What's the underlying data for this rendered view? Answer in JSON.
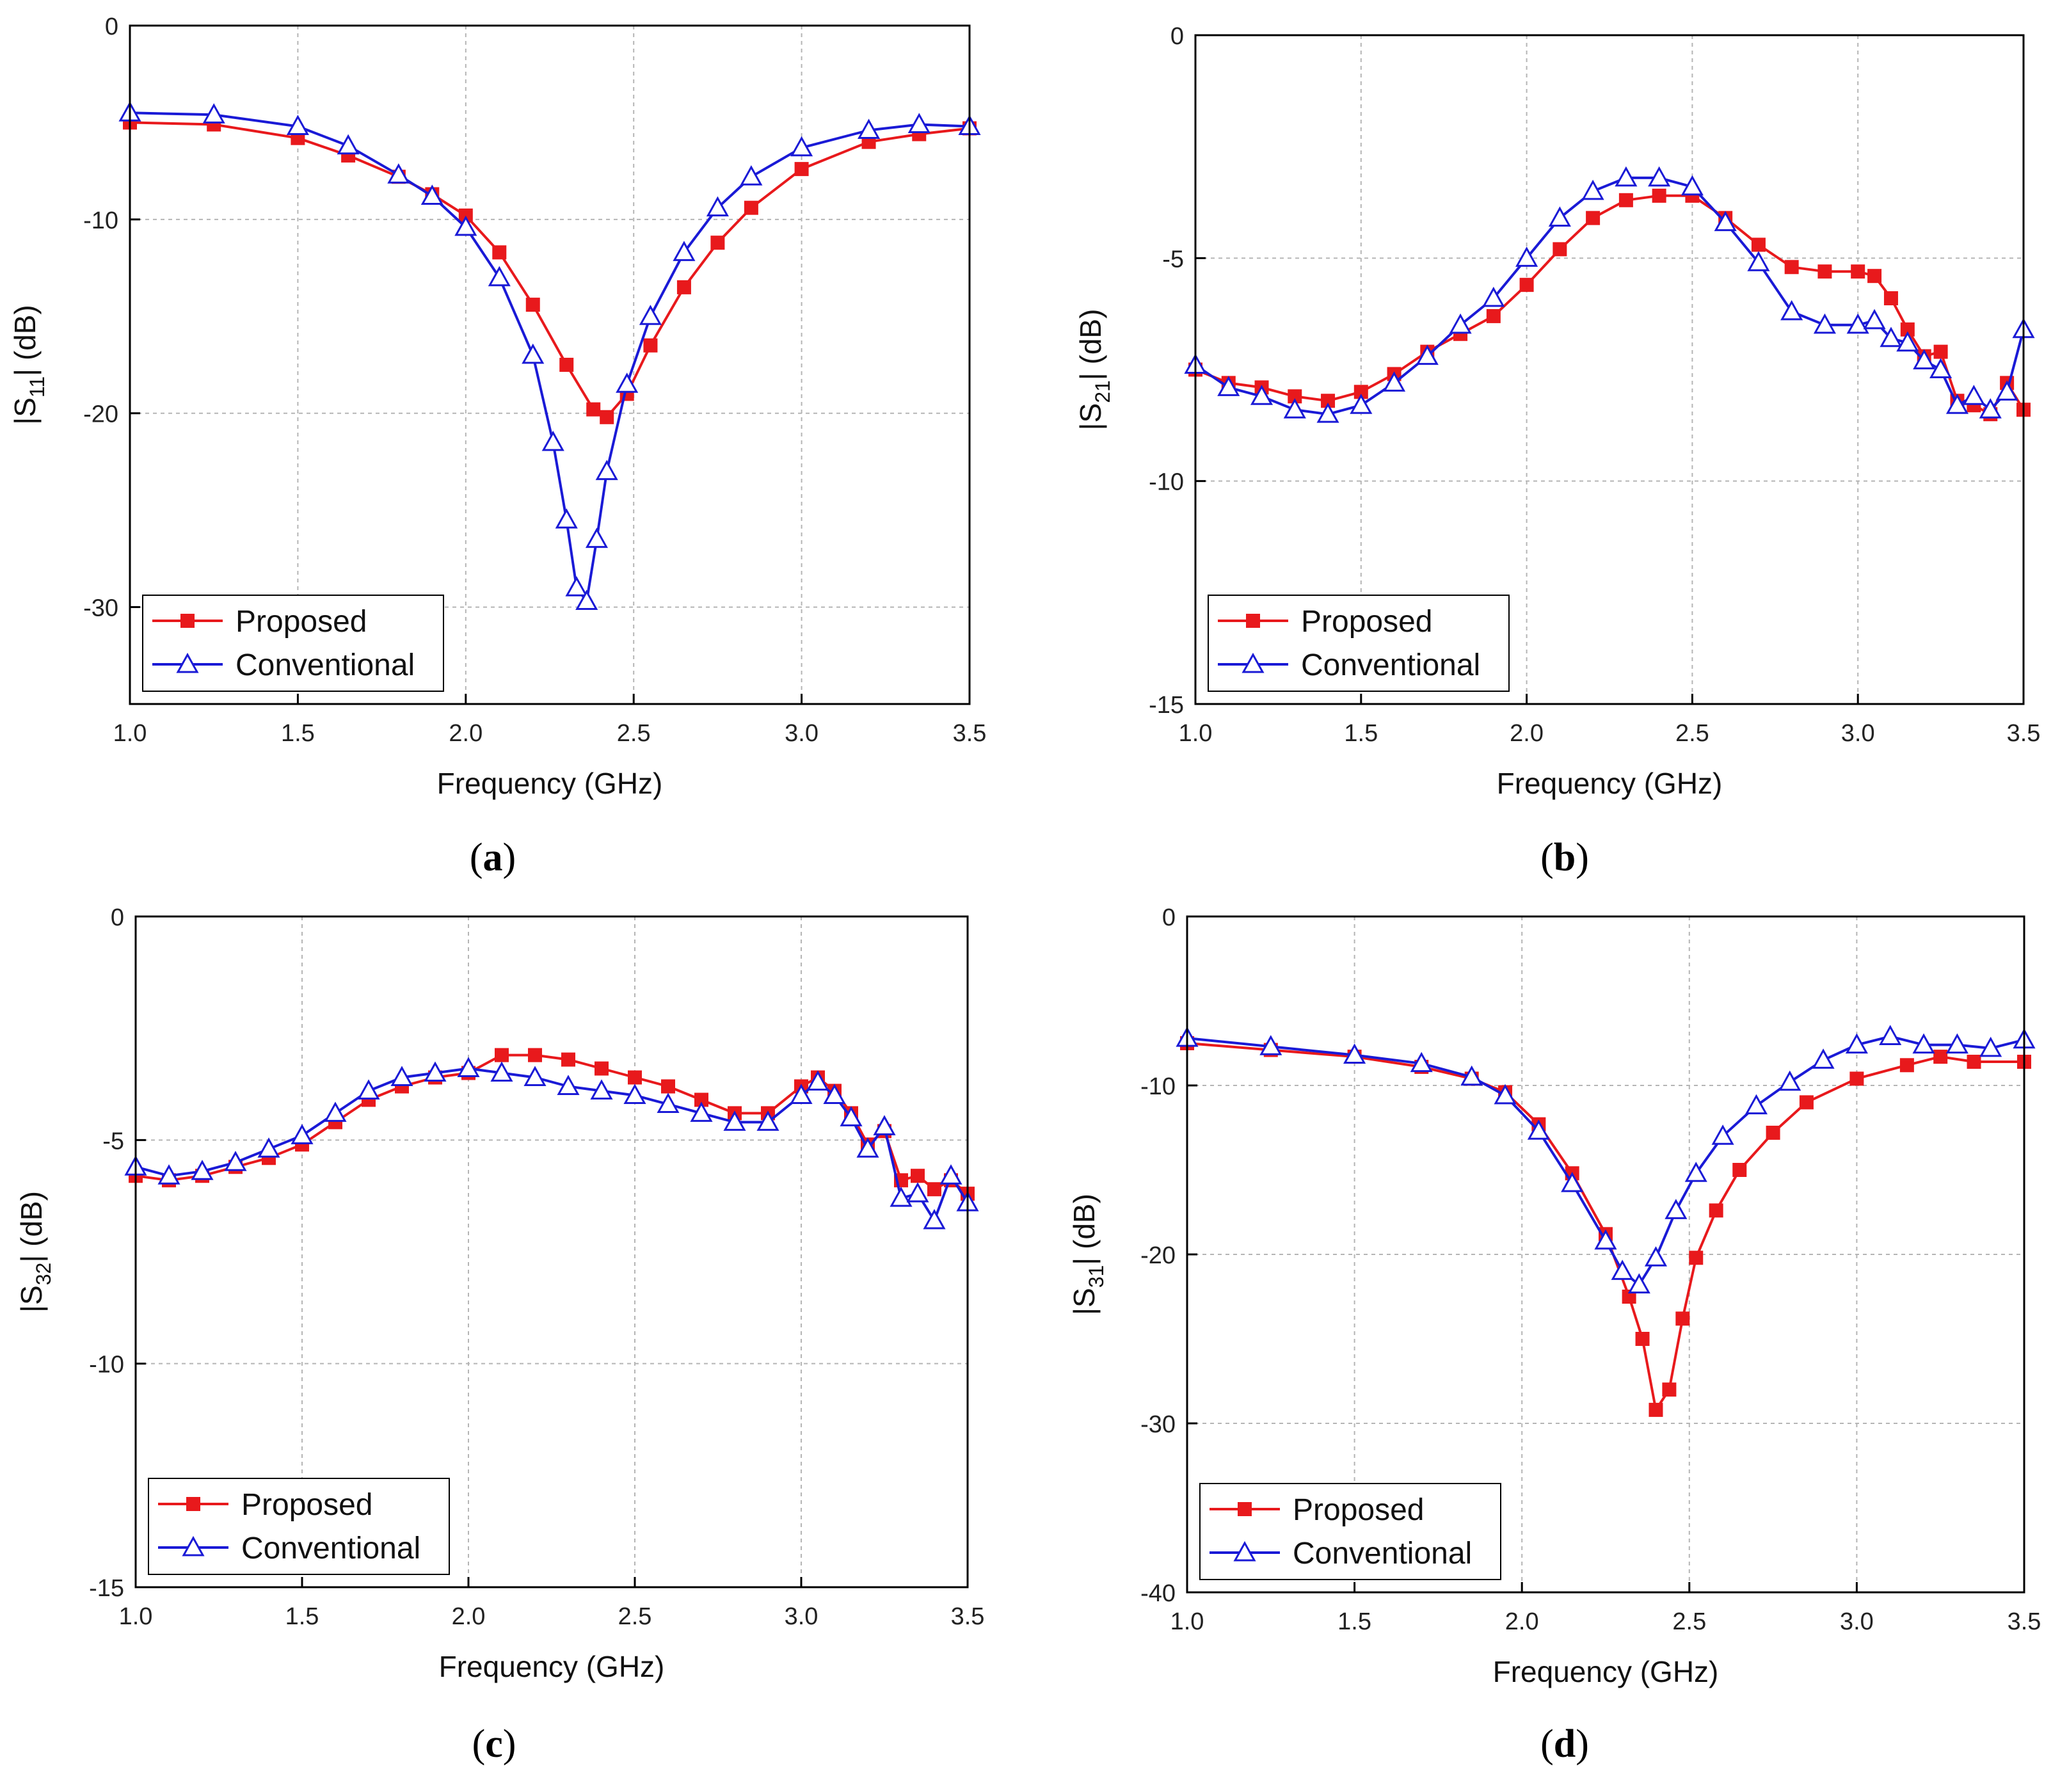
{
  "figure": {
    "legend": {
      "proposed": "Proposed",
      "conventional": "Conventional"
    },
    "colors": {
      "proposed": "#e8191c",
      "conventional": "#1a1ad6",
      "grid": "#b5b5b5",
      "axis": "#000000"
    }
  },
  "chart_data": [
    {
      "id": "a",
      "caption": {
        "open": "(",
        "letter": "a",
        "close": ")"
      },
      "type": "line",
      "title": "",
      "xlabel": "Frequency (GHz)",
      "ylabel": {
        "pre": "|S",
        "sub": "11",
        "post": "| (dB)"
      },
      "xlim": [
        1.0,
        3.5
      ],
      "ylim": [
        -35,
        0
      ],
      "xticks": [
        "1.0",
        "1.5",
        "2.0",
        "2.5",
        "3.0",
        "3.5"
      ],
      "yticks": [
        "0",
        "-10",
        "-20",
        "-30"
      ],
      "ytick_values": [
        0,
        -10,
        -20,
        -30
      ],
      "grid": true,
      "legend_position": "bottom-left",
      "series": [
        {
          "name": "Proposed",
          "marker": "square",
          "x": [
            1.0,
            1.25,
            1.5,
            1.65,
            1.8,
            1.9,
            2.0,
            2.1,
            2.2,
            2.3,
            2.38,
            2.42,
            2.48,
            2.55,
            2.65,
            2.75,
            2.85,
            3.0,
            3.2,
            3.35,
            3.5
          ],
          "y": [
            -5.0,
            -5.1,
            -5.8,
            -6.7,
            -7.8,
            -8.7,
            -9.8,
            -11.7,
            -14.4,
            -17.5,
            -19.8,
            -20.2,
            -19.0,
            -16.5,
            -13.5,
            -11.2,
            -9.4,
            -7.4,
            -6.0,
            -5.6,
            -5.3
          ]
        },
        {
          "name": "Conventional",
          "marker": "triangle",
          "x": [
            1.0,
            1.25,
            1.5,
            1.65,
            1.8,
            1.9,
            2.0,
            2.1,
            2.2,
            2.26,
            2.3,
            2.33,
            2.36,
            2.39,
            2.42,
            2.48,
            2.55,
            2.65,
            2.75,
            2.85,
            3.0,
            3.2,
            3.35,
            3.5
          ],
          "y": [
            -4.5,
            -4.6,
            -5.2,
            -6.2,
            -7.7,
            -8.8,
            -10.4,
            -13.0,
            -17.0,
            -21.5,
            -25.5,
            -29.0,
            -29.7,
            -26.5,
            -23.0,
            -18.5,
            -15.0,
            -11.7,
            -9.4,
            -7.8,
            -6.3,
            -5.4,
            -5.1,
            -5.2
          ]
        }
      ]
    },
    {
      "id": "b",
      "caption": {
        "open": "(",
        "letter": "b",
        "close": ")"
      },
      "type": "line",
      "title": "",
      "xlabel": "Frequency (GHz)",
      "ylabel": {
        "pre": "|S",
        "sub": "21",
        "post": "| (dB)"
      },
      "xlim": [
        1.0,
        3.5
      ],
      "ylim": [
        -15,
        0
      ],
      "xticks": [
        "1.0",
        "1.5",
        "2.0",
        "2.5",
        "3.0",
        "3.5"
      ],
      "yticks": [
        "0",
        "-5",
        "-10",
        "-15"
      ],
      "ytick_values": [
        0,
        -5,
        -10,
        -15
      ],
      "grid": true,
      "legend_position": "bottom-left",
      "series": [
        {
          "name": "Proposed",
          "marker": "square",
          "x": [
            1.0,
            1.1,
            1.2,
            1.3,
            1.4,
            1.5,
            1.6,
            1.7,
            1.8,
            1.9,
            2.0,
            2.1,
            2.2,
            2.3,
            2.4,
            2.5,
            2.6,
            2.7,
            2.8,
            2.9,
            3.0,
            3.05,
            3.1,
            3.15,
            3.2,
            3.25,
            3.3,
            3.35,
            3.4,
            3.45,
            3.5
          ],
          "y": [
            -7.5,
            -7.8,
            -7.9,
            -8.1,
            -8.2,
            -8.0,
            -7.6,
            -7.1,
            -6.7,
            -6.3,
            -5.6,
            -4.8,
            -4.1,
            -3.7,
            -3.6,
            -3.6,
            -4.1,
            -4.7,
            -5.2,
            -5.3,
            -5.3,
            -5.4,
            -5.9,
            -6.6,
            -7.2,
            -7.1,
            -8.2,
            -8.3,
            -8.5,
            -7.8,
            -8.4
          ]
        },
        {
          "name": "Conventional",
          "marker": "triangle",
          "x": [
            1.0,
            1.1,
            1.2,
            1.3,
            1.4,
            1.5,
            1.6,
            1.7,
            1.8,
            1.9,
            2.0,
            2.1,
            2.2,
            2.3,
            2.4,
            2.5,
            2.6,
            2.7,
            2.8,
            2.9,
            3.0,
            3.05,
            3.1,
            3.15,
            3.2,
            3.25,
            3.3,
            3.35,
            3.4,
            3.45,
            3.5
          ],
          "y": [
            -7.4,
            -7.9,
            -8.1,
            -8.4,
            -8.5,
            -8.3,
            -7.8,
            -7.2,
            -6.5,
            -5.9,
            -5.0,
            -4.1,
            -3.5,
            -3.2,
            -3.2,
            -3.4,
            -4.2,
            -5.1,
            -6.2,
            -6.5,
            -6.5,
            -6.4,
            -6.8,
            -6.9,
            -7.3,
            -7.5,
            -8.3,
            -8.1,
            -8.4,
            -8.0,
            -6.6
          ]
        }
      ]
    },
    {
      "id": "c",
      "caption": {
        "open": "(",
        "letter": "c",
        "close": ")"
      },
      "type": "line",
      "title": "",
      "xlabel": "Frequency (GHz)",
      "ylabel": {
        "pre": "|S",
        "sub": "32",
        "post": "| (dB)"
      },
      "xlim": [
        1.0,
        3.5
      ],
      "ylim": [
        -15,
        0
      ],
      "xticks": [
        "1.0",
        "1.5",
        "2.0",
        "2.5",
        "3.0",
        "3.5"
      ],
      "yticks": [
        "0",
        "-5",
        "-10",
        "-15"
      ],
      "ytick_values": [
        0,
        -5,
        -10,
        -15
      ],
      "grid": true,
      "legend_position": "bottom-left",
      "series": [
        {
          "name": "Proposed",
          "marker": "square",
          "x": [
            1.0,
            1.1,
            1.2,
            1.3,
            1.4,
            1.5,
            1.6,
            1.7,
            1.8,
            1.9,
            2.0,
            2.1,
            2.2,
            2.3,
            2.4,
            2.5,
            2.6,
            2.7,
            2.8,
            2.9,
            3.0,
            3.05,
            3.1,
            3.15,
            3.2,
            3.25,
            3.3,
            3.35,
            3.4,
            3.45,
            3.5
          ],
          "y": [
            -5.8,
            -5.9,
            -5.8,
            -5.6,
            -5.4,
            -5.1,
            -4.6,
            -4.1,
            -3.8,
            -3.6,
            -3.5,
            -3.1,
            -3.1,
            -3.2,
            -3.4,
            -3.6,
            -3.8,
            -4.1,
            -4.4,
            -4.4,
            -3.8,
            -3.6,
            -3.9,
            -4.4,
            -5.1,
            -4.8,
            -5.9,
            -5.8,
            -6.1,
            -5.9,
            -6.2
          ]
        },
        {
          "name": "Conventional",
          "marker": "triangle",
          "x": [
            1.0,
            1.1,
            1.2,
            1.3,
            1.4,
            1.5,
            1.6,
            1.7,
            1.8,
            1.9,
            2.0,
            2.1,
            2.2,
            2.3,
            2.4,
            2.5,
            2.6,
            2.7,
            2.8,
            2.9,
            3.0,
            3.05,
            3.1,
            3.15,
            3.2,
            3.25,
            3.3,
            3.35,
            3.4,
            3.45,
            3.5
          ],
          "y": [
            -5.6,
            -5.8,
            -5.7,
            -5.5,
            -5.2,
            -4.9,
            -4.4,
            -3.9,
            -3.6,
            -3.5,
            -3.4,
            -3.5,
            -3.6,
            -3.8,
            -3.9,
            -4.0,
            -4.2,
            -4.4,
            -4.6,
            -4.6,
            -4.0,
            -3.7,
            -4.0,
            -4.5,
            -5.2,
            -4.7,
            -6.3,
            -6.2,
            -6.8,
            -5.8,
            -6.4
          ]
        }
      ]
    },
    {
      "id": "d",
      "caption": {
        "open": "(",
        "letter": "d",
        "close": ")"
      },
      "type": "line",
      "title": "",
      "xlabel": "Frequency (GHz)",
      "ylabel": {
        "pre": "|S",
        "sub": "31",
        "post": "| (dB)"
      },
      "xlim": [
        1.0,
        3.5
      ],
      "ylim": [
        -40,
        0
      ],
      "xticks": [
        "1.0",
        "1.5",
        "2.0",
        "2.5",
        "3.0",
        "3.5"
      ],
      "yticks": [
        "0",
        "-10",
        "-20",
        "-30",
        "-40"
      ],
      "ytick_values": [
        0,
        -10,
        -20,
        -30,
        -40
      ],
      "grid": true,
      "legend_position": "bottom-left",
      "series": [
        {
          "name": "Proposed",
          "marker": "square",
          "x": [
            1.0,
            1.25,
            1.5,
            1.7,
            1.85,
            1.95,
            2.05,
            2.15,
            2.25,
            2.32,
            2.36,
            2.4,
            2.44,
            2.48,
            2.52,
            2.58,
            2.65,
            2.75,
            2.85,
            3.0,
            3.15,
            3.25,
            3.35,
            3.5
          ],
          "y": [
            -7.5,
            -7.9,
            -8.3,
            -8.9,
            -9.6,
            -10.4,
            -12.3,
            -15.2,
            -18.8,
            -22.5,
            -25.0,
            -29.2,
            -28.0,
            -23.8,
            -20.2,
            -17.4,
            -15.0,
            -12.8,
            -11.0,
            -9.6,
            -8.8,
            -8.3,
            -8.6,
            -8.6
          ]
        },
        {
          "name": "Conventional",
          "marker": "triangle",
          "x": [
            1.0,
            1.25,
            1.5,
            1.7,
            1.85,
            1.95,
            2.05,
            2.15,
            2.25,
            2.3,
            2.35,
            2.4,
            2.46,
            2.52,
            2.6,
            2.7,
            2.8,
            2.9,
            3.0,
            3.1,
            3.2,
            3.3,
            3.4,
            3.5
          ],
          "y": [
            -7.2,
            -7.7,
            -8.2,
            -8.7,
            -9.5,
            -10.6,
            -12.7,
            -15.8,
            -19.2,
            -21.0,
            -21.8,
            -20.2,
            -17.4,
            -15.2,
            -13.0,
            -11.2,
            -9.8,
            -8.5,
            -7.6,
            -7.1,
            -7.6,
            -7.6,
            -7.8,
            -7.3
          ]
        }
      ]
    }
  ]
}
